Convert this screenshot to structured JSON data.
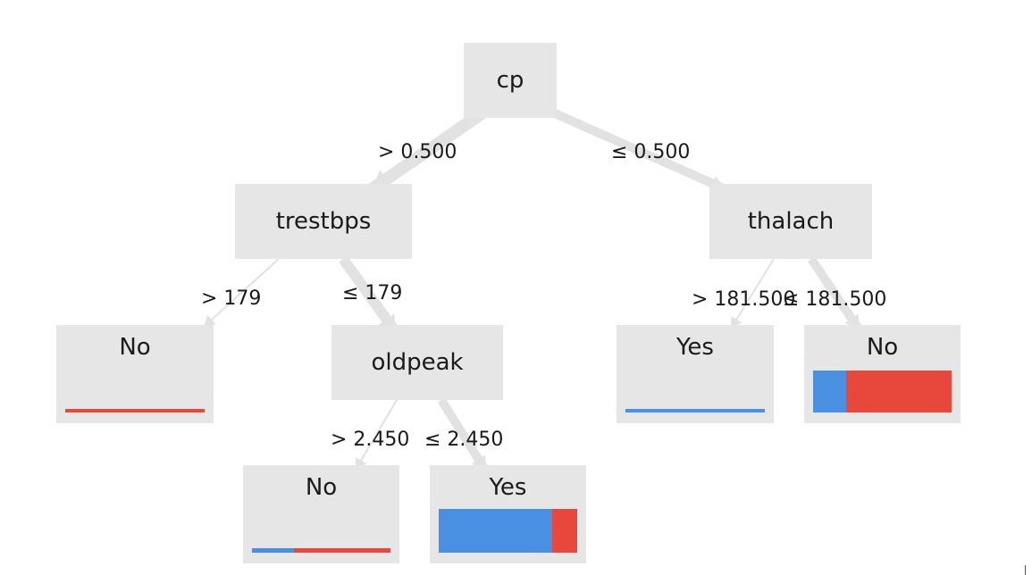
{
  "colors": {
    "yes": "#4a90e2",
    "no": "#e8473b",
    "node_bg": "#e6e6e6",
    "edge": "#e2e2e2"
  },
  "nodes": {
    "cp": {
      "label": "cp",
      "type": "split"
    },
    "trestbps": {
      "label": "trestbps",
      "type": "split"
    },
    "thalach": {
      "label": "thalach",
      "type": "split"
    },
    "oldpeak": {
      "label": "oldpeak",
      "type": "split"
    },
    "leaf_trestbps_gt": {
      "label": "No",
      "type": "leaf",
      "yes_fraction": 0.0
    },
    "leaf_thalach_gt": {
      "label": "Yes",
      "type": "leaf",
      "yes_fraction": 1.0
    },
    "leaf_thalach_le": {
      "label": "No",
      "type": "leaf",
      "yes_fraction": 0.24
    },
    "leaf_oldpeak_gt": {
      "label": "No",
      "type": "leaf",
      "yes_fraction": 0.3
    },
    "leaf_oldpeak_le": {
      "label": "Yes",
      "type": "leaf",
      "yes_fraction": 0.82
    }
  },
  "edges": {
    "cp_gt": {
      "label": "> 0.500",
      "from": "cp",
      "to": "trestbps"
    },
    "cp_le": {
      "label": "≤ 0.500",
      "from": "cp",
      "to": "thalach"
    },
    "trestbps_gt": {
      "label": "> 179",
      "from": "trestbps",
      "to": "leaf_trestbps_gt"
    },
    "trestbps_le": {
      "label": "≤ 179",
      "from": "trestbps",
      "to": "oldpeak"
    },
    "thalach_gt": {
      "label": "> 181.500",
      "from": "thalach",
      "to": "leaf_thalach_gt"
    },
    "thalach_le": {
      "label": "≤ 181.500",
      "from": "thalach",
      "to": "leaf_thalach_le"
    },
    "oldpeak_gt": {
      "label": "> 2.450",
      "from": "oldpeak",
      "to": "leaf_oldpeak_gt"
    },
    "oldpeak_le": {
      "label": "≤ 2.450",
      "from": "oldpeak",
      "to": "leaf_oldpeak_le"
    }
  }
}
